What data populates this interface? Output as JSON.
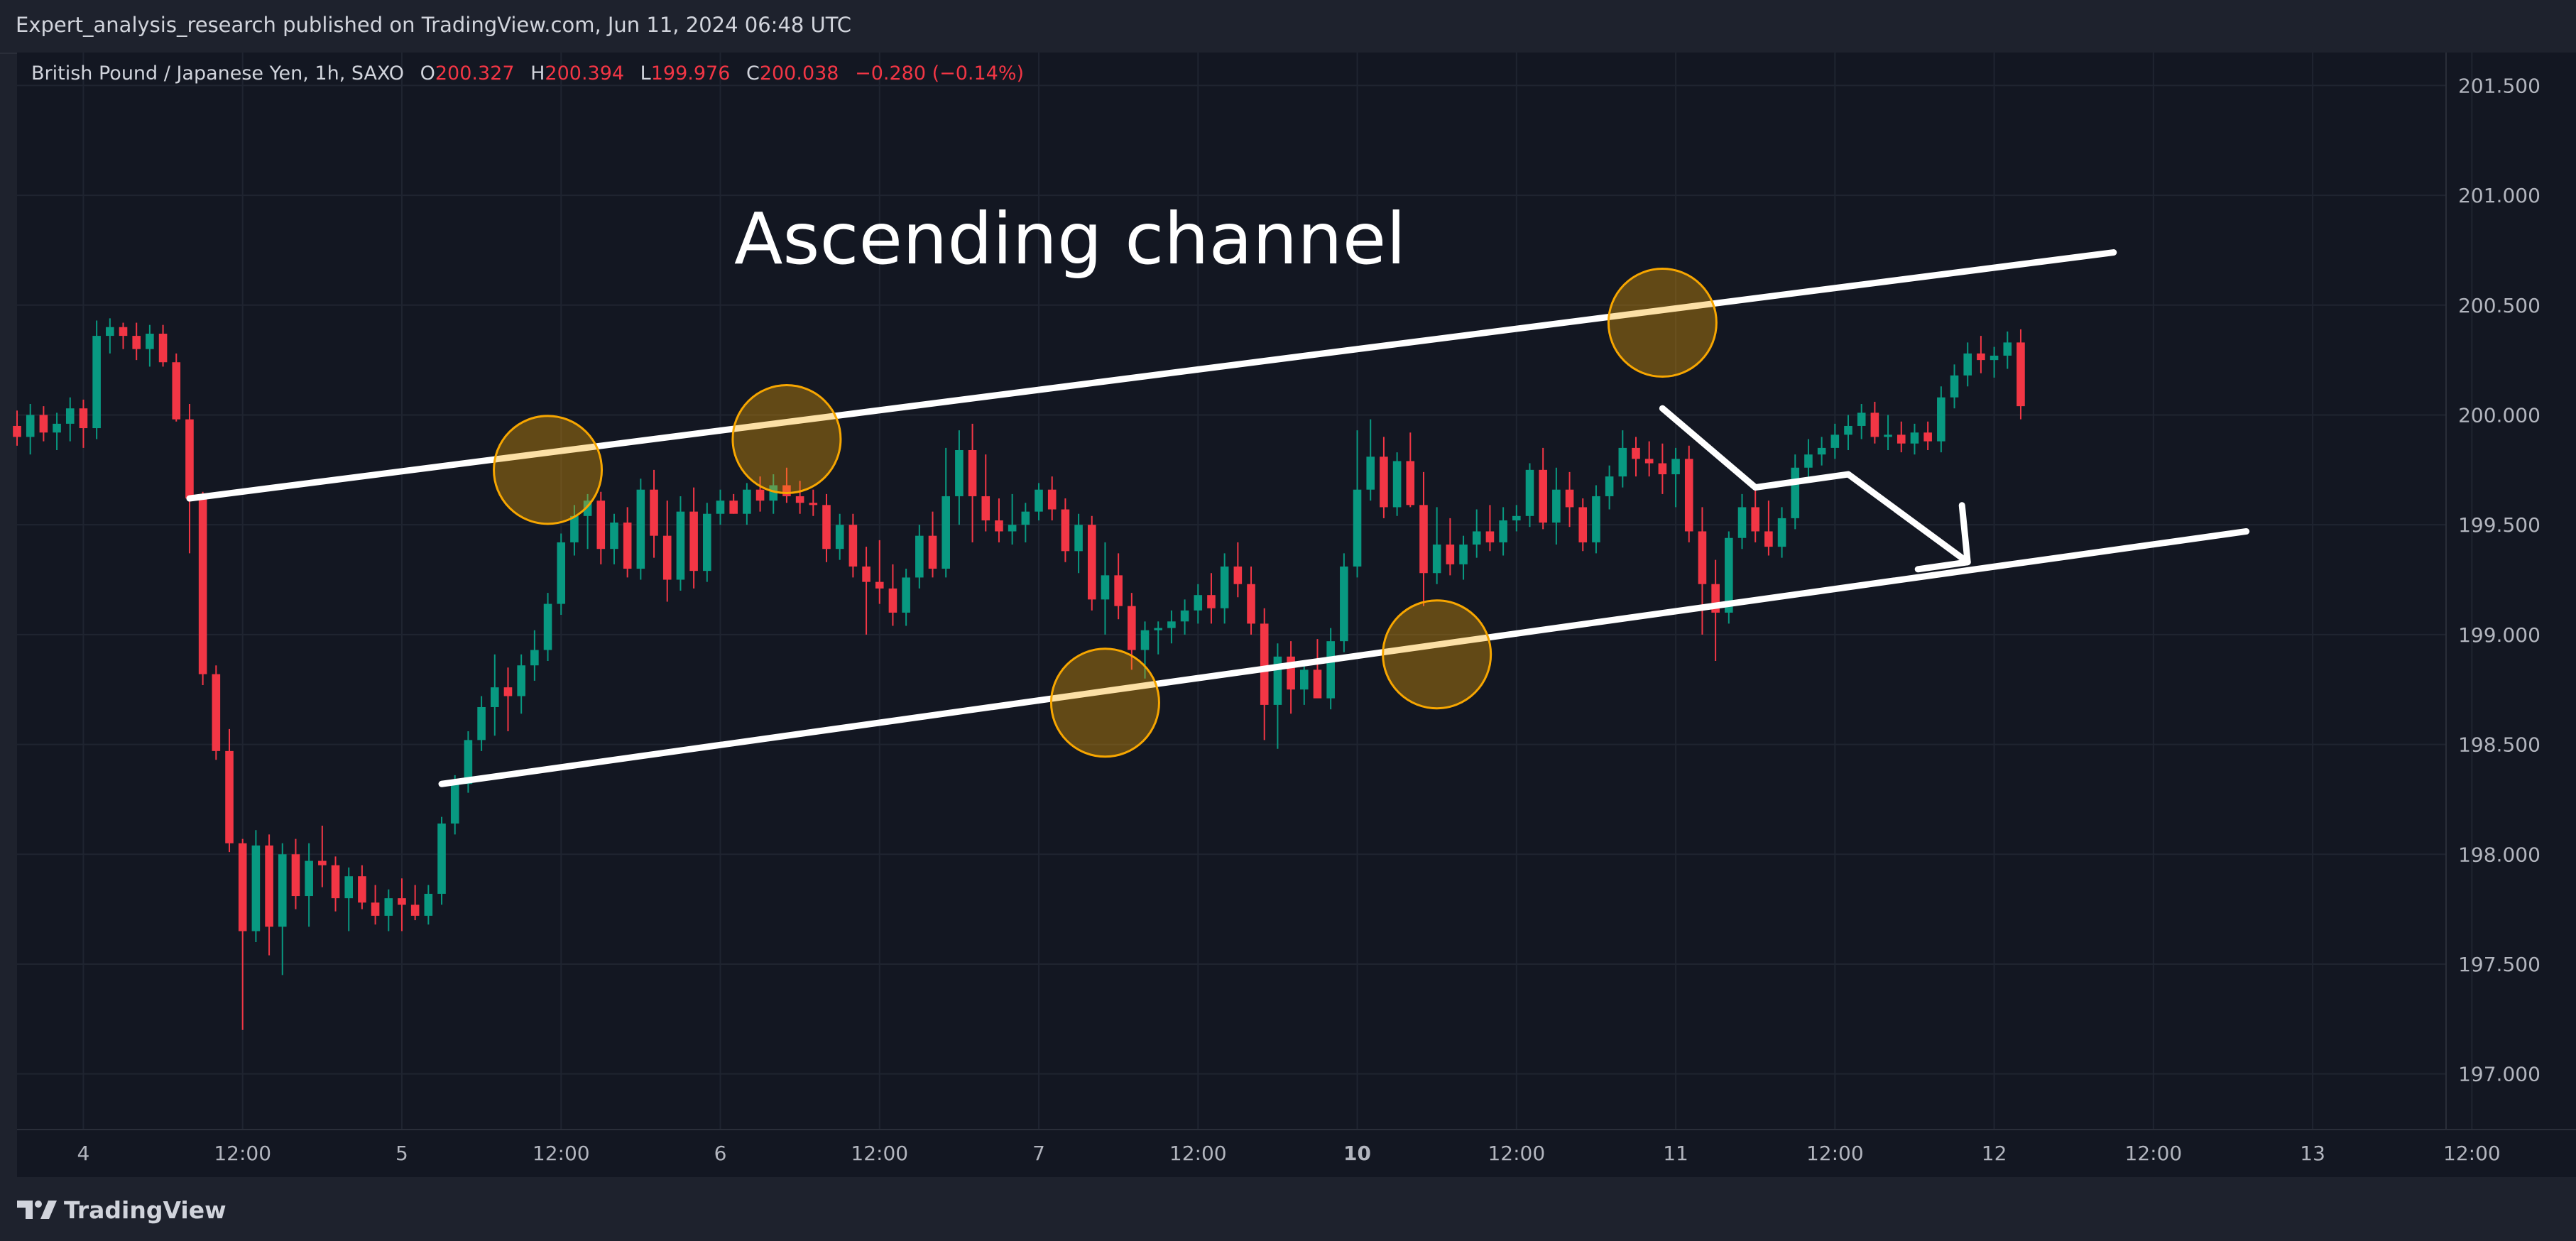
{
  "header": {
    "publisher_line": "Expert_analysis_research published on TradingView.com, Jun 11, 2024 06:48 UTC"
  },
  "legend": {
    "symbol": "British Pound / Japanese Yen, 1h, SAXO",
    "open_key": "O",
    "open": "200.327",
    "high_key": "H",
    "high": "200.394",
    "low_key": "L",
    "low": "199.976",
    "close_key": "C",
    "close": "200.038",
    "change": "−0.280 (−0.14%)"
  },
  "annotation": {
    "text": "Ascending channel"
  },
  "branding": {
    "name": "TradingView"
  },
  "colors": {
    "up": "#089981",
    "down": "#f23645",
    "background": "#131722",
    "grid": "#1f2430",
    "channel_lines": "#ffffff",
    "touch_circles": "#f7a600"
  },
  "chart_data": {
    "type": "candlestick",
    "symbol": "GBPJPY",
    "timeframe": "1h",
    "price_axis": {
      "min": 196.75,
      "max": 201.65,
      "ticks": [
        "201.500",
        "201.000",
        "200.500",
        "200.000",
        "199.500",
        "199.000",
        "198.500",
        "198.000",
        "197.500",
        "197.000"
      ]
    },
    "time_axis": {
      "labels": [
        "4",
        "12:00",
        "5",
        "12:00",
        "6",
        "12:00",
        "7",
        "12:00",
        "10",
        "12:00",
        "11",
        "12:00",
        "12",
        "12:00",
        "13",
        "12:00"
      ],
      "bold": [
        false,
        false,
        false,
        false,
        false,
        false,
        false,
        false,
        true,
        false,
        false,
        false,
        false,
        false,
        false,
        false
      ]
    },
    "bar_index_range": [
      0,
      183
    ],
    "candles": [
      [
        199.95,
        200.02,
        199.86,
        199.9
      ],
      [
        199.9,
        200.05,
        199.82,
        200.0
      ],
      [
        200.0,
        200.04,
        199.88,
        199.92
      ],
      [
        199.92,
        200.01,
        199.84,
        199.96
      ],
      [
        199.96,
        200.08,
        199.88,
        200.03
      ],
      [
        200.03,
        200.07,
        199.85,
        199.94
      ],
      [
        199.94,
        200.43,
        199.89,
        200.36
      ],
      [
        200.36,
        200.44,
        200.28,
        200.4
      ],
      [
        200.4,
        200.42,
        200.3,
        200.36
      ],
      [
        200.36,
        200.42,
        200.25,
        200.3
      ],
      [
        200.3,
        200.41,
        200.22,
        200.37
      ],
      [
        200.37,
        200.41,
        200.22,
        200.24
      ],
      [
        200.24,
        200.28,
        199.97,
        199.98
      ],
      [
        199.98,
        200.05,
        199.37,
        199.62
      ],
      [
        199.62,
        199.65,
        198.77,
        198.82
      ],
      [
        198.82,
        198.86,
        198.43,
        198.47
      ],
      [
        198.47,
        198.57,
        198.01,
        198.05
      ],
      [
        198.05,
        198.07,
        197.2,
        197.65
      ],
      [
        197.65,
        198.11,
        197.6,
        198.04
      ],
      [
        198.04,
        198.09,
        197.54,
        197.67
      ],
      [
        197.67,
        198.05,
        197.45,
        198.0
      ],
      [
        198.0,
        198.07,
        197.75,
        197.81
      ],
      [
        197.81,
        198.05,
        197.67,
        197.97
      ],
      [
        197.97,
        198.13,
        197.85,
        197.95
      ],
      [
        197.95,
        197.99,
        197.74,
        197.8
      ],
      [
        197.8,
        197.94,
        197.65,
        197.9
      ],
      [
        197.9,
        197.95,
        197.75,
        197.78
      ],
      [
        197.78,
        197.86,
        197.68,
        197.72
      ],
      [
        197.72,
        197.84,
        197.65,
        197.8
      ],
      [
        197.8,
        197.89,
        197.65,
        197.77
      ],
      [
        197.77,
        197.86,
        197.7,
        197.72
      ],
      [
        197.72,
        197.86,
        197.68,
        197.82
      ],
      [
        197.82,
        198.17,
        197.77,
        198.14
      ],
      [
        198.14,
        198.36,
        198.09,
        198.32
      ],
      [
        198.32,
        198.56,
        198.28,
        198.52
      ],
      [
        198.52,
        198.72,
        198.47,
        198.67
      ],
      [
        198.67,
        198.91,
        198.54,
        198.76
      ],
      [
        198.76,
        198.85,
        198.56,
        198.72
      ],
      [
        198.72,
        198.91,
        198.64,
        198.86
      ],
      [
        198.86,
        199.02,
        198.79,
        198.93
      ],
      [
        198.93,
        199.19,
        198.88,
        199.14
      ],
      [
        199.14,
        199.46,
        199.09,
        199.42
      ],
      [
        199.42,
        199.59,
        199.36,
        199.54
      ],
      [
        199.54,
        199.64,
        199.39,
        199.61
      ],
      [
        199.61,
        199.65,
        199.32,
        199.39
      ],
      [
        199.39,
        199.55,
        199.32,
        199.51
      ],
      [
        199.51,
        199.58,
        199.26,
        199.3
      ],
      [
        199.3,
        199.71,
        199.25,
        199.66
      ],
      [
        199.66,
        199.75,
        199.35,
        199.45
      ],
      [
        199.45,
        199.61,
        199.15,
        199.25
      ],
      [
        199.25,
        199.63,
        199.2,
        199.56
      ],
      [
        199.56,
        199.67,
        199.21,
        199.29
      ],
      [
        199.29,
        199.6,
        199.24,
        199.55
      ],
      [
        199.55,
        199.66,
        199.5,
        199.61
      ],
      [
        199.61,
        199.64,
        199.55,
        199.55
      ],
      [
        199.55,
        199.69,
        199.5,
        199.66
      ],
      [
        199.66,
        199.72,
        199.56,
        199.61
      ],
      [
        199.61,
        199.73,
        199.55,
        199.68
      ],
      [
        199.68,
        199.76,
        199.6,
        199.63
      ],
      [
        199.63,
        199.7,
        199.55,
        199.6
      ],
      [
        199.6,
        199.66,
        199.54,
        199.59
      ],
      [
        199.59,
        199.64,
        199.33,
        199.39
      ],
      [
        199.39,
        199.55,
        199.34,
        199.5
      ],
      [
        199.5,
        199.55,
        199.26,
        199.31
      ],
      [
        199.31,
        199.4,
        199.0,
        199.24
      ],
      [
        199.24,
        199.43,
        199.14,
        199.21
      ],
      [
        199.21,
        199.32,
        199.04,
        199.1
      ],
      [
        199.1,
        199.3,
        199.04,
        199.26
      ],
      [
        199.26,
        199.5,
        199.21,
        199.45
      ],
      [
        199.45,
        199.56,
        199.26,
        199.3
      ],
      [
        199.3,
        199.85,
        199.26,
        199.63
      ],
      [
        199.63,
        199.93,
        199.5,
        199.84
      ],
      [
        199.84,
        199.96,
        199.42,
        199.63
      ],
      [
        199.63,
        199.82,
        199.47,
        199.52
      ],
      [
        199.52,
        199.62,
        199.42,
        199.47
      ],
      [
        199.47,
        199.64,
        199.41,
        199.5
      ],
      [
        199.5,
        199.6,
        199.42,
        199.56
      ],
      [
        199.56,
        199.69,
        199.52,
        199.66
      ],
      [
        199.66,
        199.72,
        199.52,
        199.57
      ],
      [
        199.57,
        199.62,
        199.33,
        199.38
      ],
      [
        199.38,
        199.55,
        199.28,
        199.5
      ],
      [
        199.5,
        199.54,
        199.11,
        199.16
      ],
      [
        199.16,
        199.42,
        199.0,
        199.27
      ],
      [
        199.27,
        199.37,
        199.07,
        199.13
      ],
      [
        199.13,
        199.19,
        198.84,
        198.93
      ],
      [
        198.93,
        199.06,
        198.8,
        199.02
      ],
      [
        199.02,
        199.06,
        198.91,
        199.03
      ],
      [
        199.03,
        199.11,
        198.96,
        199.06
      ],
      [
        199.06,
        199.16,
        199.0,
        199.11
      ],
      [
        199.11,
        199.23,
        199.05,
        199.18
      ],
      [
        199.18,
        199.28,
        199.05,
        199.12
      ],
      [
        199.12,
        199.37,
        199.05,
        199.31
      ],
      [
        199.31,
        199.42,
        199.17,
        199.23
      ],
      [
        199.23,
        199.31,
        199.0,
        199.05
      ],
      [
        199.05,
        199.12,
        198.52,
        198.68
      ],
      [
        198.68,
        198.96,
        198.48,
        198.9
      ],
      [
        198.9,
        198.97,
        198.64,
        198.75
      ],
      [
        198.75,
        198.88,
        198.68,
        198.84
      ],
      [
        198.84,
        198.98,
        198.73,
        198.71
      ],
      [
        198.71,
        199.03,
        198.66,
        198.97
      ],
      [
        198.97,
        199.37,
        198.92,
        199.31
      ],
      [
        199.31,
        199.93,
        199.26,
        199.66
      ],
      [
        199.66,
        199.98,
        199.61,
        199.81
      ],
      [
        199.81,
        199.9,
        199.53,
        199.58
      ],
      [
        199.58,
        199.83,
        199.54,
        199.79
      ],
      [
        199.79,
        199.92,
        199.58,
        199.59
      ],
      [
        199.59,
        199.74,
        199.13,
        199.28
      ],
      [
        199.28,
        199.58,
        199.23,
        199.41
      ],
      [
        199.41,
        199.53,
        199.27,
        199.32
      ],
      [
        199.32,
        199.45,
        199.25,
        199.41
      ],
      [
        199.41,
        199.57,
        199.35,
        199.47
      ],
      [
        199.47,
        199.59,
        199.38,
        199.42
      ],
      [
        199.42,
        199.58,
        199.36,
        199.52
      ],
      [
        199.52,
        199.59,
        199.47,
        199.54
      ],
      [
        199.54,
        199.78,
        199.49,
        199.75
      ],
      [
        199.75,
        199.85,
        199.48,
        199.51
      ],
      [
        199.51,
        199.76,
        199.41,
        199.66
      ],
      [
        199.66,
        199.74,
        199.49,
        199.58
      ],
      [
        199.58,
        199.62,
        199.38,
        199.42
      ],
      [
        199.42,
        199.68,
        199.37,
        199.63
      ],
      [
        199.63,
        199.77,
        199.57,
        199.72
      ],
      [
        199.72,
        199.93,
        199.67,
        199.85
      ],
      [
        199.85,
        199.9,
        199.72,
        199.8
      ],
      [
        199.8,
        199.88,
        199.72,
        199.78
      ],
      [
        199.78,
        199.87,
        199.64,
        199.73
      ],
      [
        199.73,
        199.85,
        199.58,
        199.8
      ],
      [
        199.8,
        199.86,
        199.42,
        199.47
      ],
      [
        199.47,
        199.58,
        199.0,
        199.23
      ],
      [
        199.23,
        199.34,
        198.88,
        199.1
      ],
      [
        199.1,
        199.47,
        199.05,
        199.44
      ],
      [
        199.44,
        199.64,
        199.39,
        199.58
      ],
      [
        199.58,
        199.66,
        199.42,
        199.47
      ],
      [
        199.47,
        199.61,
        199.36,
        199.4
      ],
      [
        199.4,
        199.58,
        199.35,
        199.53
      ],
      [
        199.53,
        199.82,
        199.48,
        199.76
      ],
      [
        199.76,
        199.89,
        199.71,
        199.82
      ],
      [
        199.82,
        199.9,
        199.77,
        199.85
      ],
      [
        199.85,
        199.96,
        199.8,
        199.91
      ],
      [
        199.91,
        200.0,
        199.84,
        199.95
      ],
      [
        199.95,
        200.05,
        199.89,
        200.01
      ],
      [
        200.01,
        200.06,
        199.87,
        199.9
      ],
      [
        199.9,
        200.0,
        199.84,
        199.91
      ],
      [
        199.91,
        199.97,
        199.83,
        199.87
      ],
      [
        199.87,
        199.96,
        199.82,
        199.92
      ],
      [
        199.92,
        199.97,
        199.84,
        199.88
      ],
      [
        199.88,
        200.13,
        199.83,
        200.08
      ],
      [
        200.08,
        200.23,
        200.03,
        200.18
      ],
      [
        200.18,
        200.33,
        200.13,
        200.28
      ],
      [
        200.28,
        200.36,
        200.19,
        200.25
      ],
      [
        200.25,
        200.31,
        200.17,
        200.27
      ],
      [
        200.27,
        200.38,
        200.21,
        200.33
      ],
      [
        200.33,
        200.39,
        199.98,
        200.04
      ]
    ],
    "channel": {
      "label": "Ascending channel",
      "upper": [
        [
          13,
          199.62
        ],
        [
          158,
          200.74
        ]
      ],
      "lower": [
        [
          32,
          198.32
        ],
        [
          168,
          199.47
        ]
      ]
    },
    "touch_points": [
      [
        40,
        199.75
      ],
      [
        58,
        199.89
      ],
      [
        82,
        198.69
      ],
      [
        107,
        198.91
      ],
      [
        124,
        200.42
      ]
    ],
    "projection": [
      [
        124,
        200.03
      ],
      [
        131,
        199.67
      ],
      [
        138,
        199.73
      ],
      [
        147,
        199.33
      ]
    ]
  }
}
